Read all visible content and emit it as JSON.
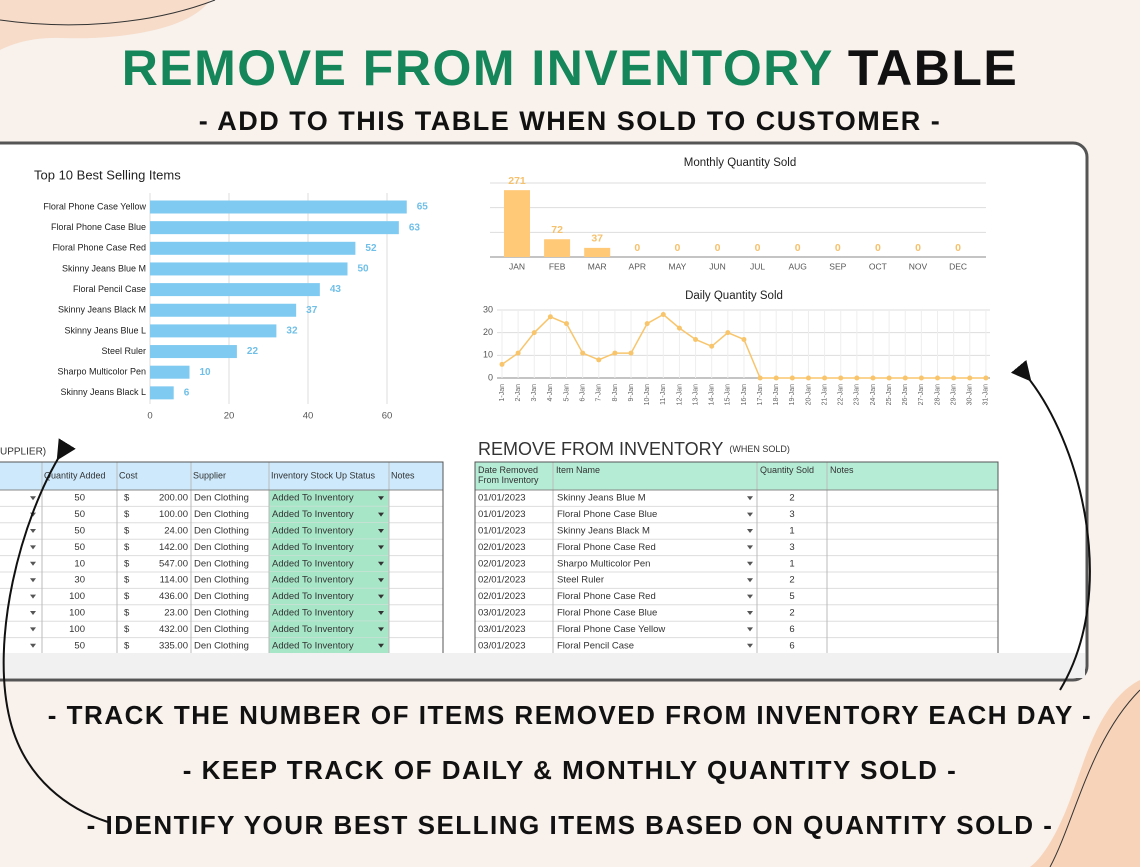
{
  "header": {
    "title_green": "REMOVE FROM INVENTORY",
    "title_dark": "TABLE",
    "subtitle": "- ADD TO THIS TABLE WHEN SOLD TO CUSTOMER -"
  },
  "chart_data": [
    {
      "type": "bar",
      "orientation": "horizontal",
      "title": "Top 10 Best Selling Items",
      "categories": [
        "Floral Phone Case Yellow",
        "Floral Phone Case Blue",
        "Floral Phone Case Red",
        "Skinny Jeans Blue M",
        "Floral Pencil Case",
        "Skinny Jeans Black M",
        "Skinny Jeans Blue L",
        "Steel Ruler",
        "Sharpo Multicolor Pen",
        "Skinny Jeans Black L"
      ],
      "values": [
        65,
        63,
        52,
        50,
        43,
        37,
        32,
        22,
        10,
        6
      ],
      "color": "#7fcaf0",
      "xlim": [
        0,
        70
      ],
      "xticks": [
        0,
        20,
        40,
        60
      ],
      "grid": true
    },
    {
      "type": "bar",
      "orientation": "vertical",
      "title": "Monthly Quantity Sold",
      "categories": [
        "JAN",
        "FEB",
        "MAR",
        "APR",
        "MAY",
        "JUN",
        "JUL",
        "AUG",
        "SEP",
        "OCT",
        "NOV",
        "DEC"
      ],
      "values": [
        271,
        72,
        37,
        0,
        0,
        0,
        0,
        0,
        0,
        0,
        0,
        0
      ],
      "color": "#ffc978",
      "ylim": [
        0,
        300
      ],
      "grid": true
    },
    {
      "type": "line",
      "title": "Daily Quantity Sold",
      "categories": [
        "1-Jan",
        "2-Jan",
        "3-Jan",
        "4-Jan",
        "5-Jan",
        "6-Jan",
        "7-Jan",
        "8-Jan",
        "9-Jan",
        "10-Jan",
        "11-Jan",
        "12-Jan",
        "13-Jan",
        "14-Jan",
        "15-Jan",
        "16-Jan",
        "17-Jan",
        "18-Jan",
        "19-Jan",
        "20-Jan",
        "21-Jan",
        "22-Jan",
        "23-Jan",
        "24-Jan",
        "25-Jan",
        "26-Jan",
        "27-Jan",
        "28-Jan",
        "29-Jan",
        "30-Jan",
        "31-Jan"
      ],
      "values": [
        6,
        11,
        20,
        27,
        24,
        11,
        8,
        11,
        11,
        24,
        28,
        22,
        17,
        14,
        20,
        17,
        0,
        0,
        0,
        0,
        0,
        0,
        0,
        0,
        0,
        0,
        0,
        0,
        0,
        0,
        0
      ],
      "color": "#f8c56c",
      "ylim": [
        0,
        30
      ],
      "yticks": [
        0,
        10,
        20,
        30
      ],
      "grid": true
    }
  ],
  "left_table": {
    "caption": "UPPLIER)",
    "headers": [
      "Quantity Added",
      "Cost",
      "Supplier",
      "Inventory Stock Up Status",
      "Notes"
    ],
    "rows": [
      [
        "50",
        "$",
        "200.00",
        "Den Clothing",
        "Added To Inventory"
      ],
      [
        "50",
        "$",
        "100.00",
        "Den Clothing",
        "Added To Inventory"
      ],
      [
        "50",
        "$",
        "24.00",
        "Den Clothing",
        "Added To Inventory"
      ],
      [
        "50",
        "$",
        "142.00",
        "Den Clothing",
        "Added To Inventory"
      ],
      [
        "10",
        "$",
        "547.00",
        "Den Clothing",
        "Added To Inventory"
      ],
      [
        "30",
        "$",
        "114.00",
        "Den Clothing",
        "Added To Inventory"
      ],
      [
        "100",
        "$",
        "436.00",
        "Den Clothing",
        "Added To Inventory"
      ],
      [
        "100",
        "$",
        "23.00",
        "Den Clothing",
        "Added To Inventory"
      ],
      [
        "100",
        "$",
        "432.00",
        "Den Clothing",
        "Added To Inventory"
      ],
      [
        "50",
        "$",
        "335.00",
        "Den Clothing",
        "Added To Inventory"
      ]
    ]
  },
  "right_table": {
    "title": "REMOVE FROM INVENTORY",
    "title_note": "(WHEN SOLD)",
    "headers": [
      "Date Removed From Inventory",
      "Item Name",
      "Quantity Sold",
      "Notes"
    ],
    "rows": [
      [
        "01/01/2023",
        "Skinny Jeans Blue M",
        "2"
      ],
      [
        "01/01/2023",
        "Floral Phone Case Blue",
        "3"
      ],
      [
        "01/01/2023",
        "Skinny Jeans Black M",
        "1"
      ],
      [
        "02/01/2023",
        "Floral Phone Case Red",
        "3"
      ],
      [
        "02/01/2023",
        "Sharpo Multicolor Pen",
        "1"
      ],
      [
        "02/01/2023",
        "Steel Ruler",
        "2"
      ],
      [
        "02/01/2023",
        "Floral Phone Case Red",
        "5"
      ],
      [
        "03/01/2023",
        "Floral Phone Case Blue",
        "2"
      ],
      [
        "03/01/2023",
        "Floral Phone Case Yellow",
        "6"
      ],
      [
        "03/01/2023",
        "Floral Pencil Case",
        "6"
      ]
    ]
  },
  "footer": [
    "- TRACK THE NUMBER OF ITEMS REMOVED FROM INVENTORY EACH DAY -",
    "- KEEP TRACK OF DAILY & MONTHLY QUANTITY SOLD -",
    "- IDENTIFY YOUR BEST SELLING ITEMS BASED ON QUANTITY SOLD -"
  ]
}
